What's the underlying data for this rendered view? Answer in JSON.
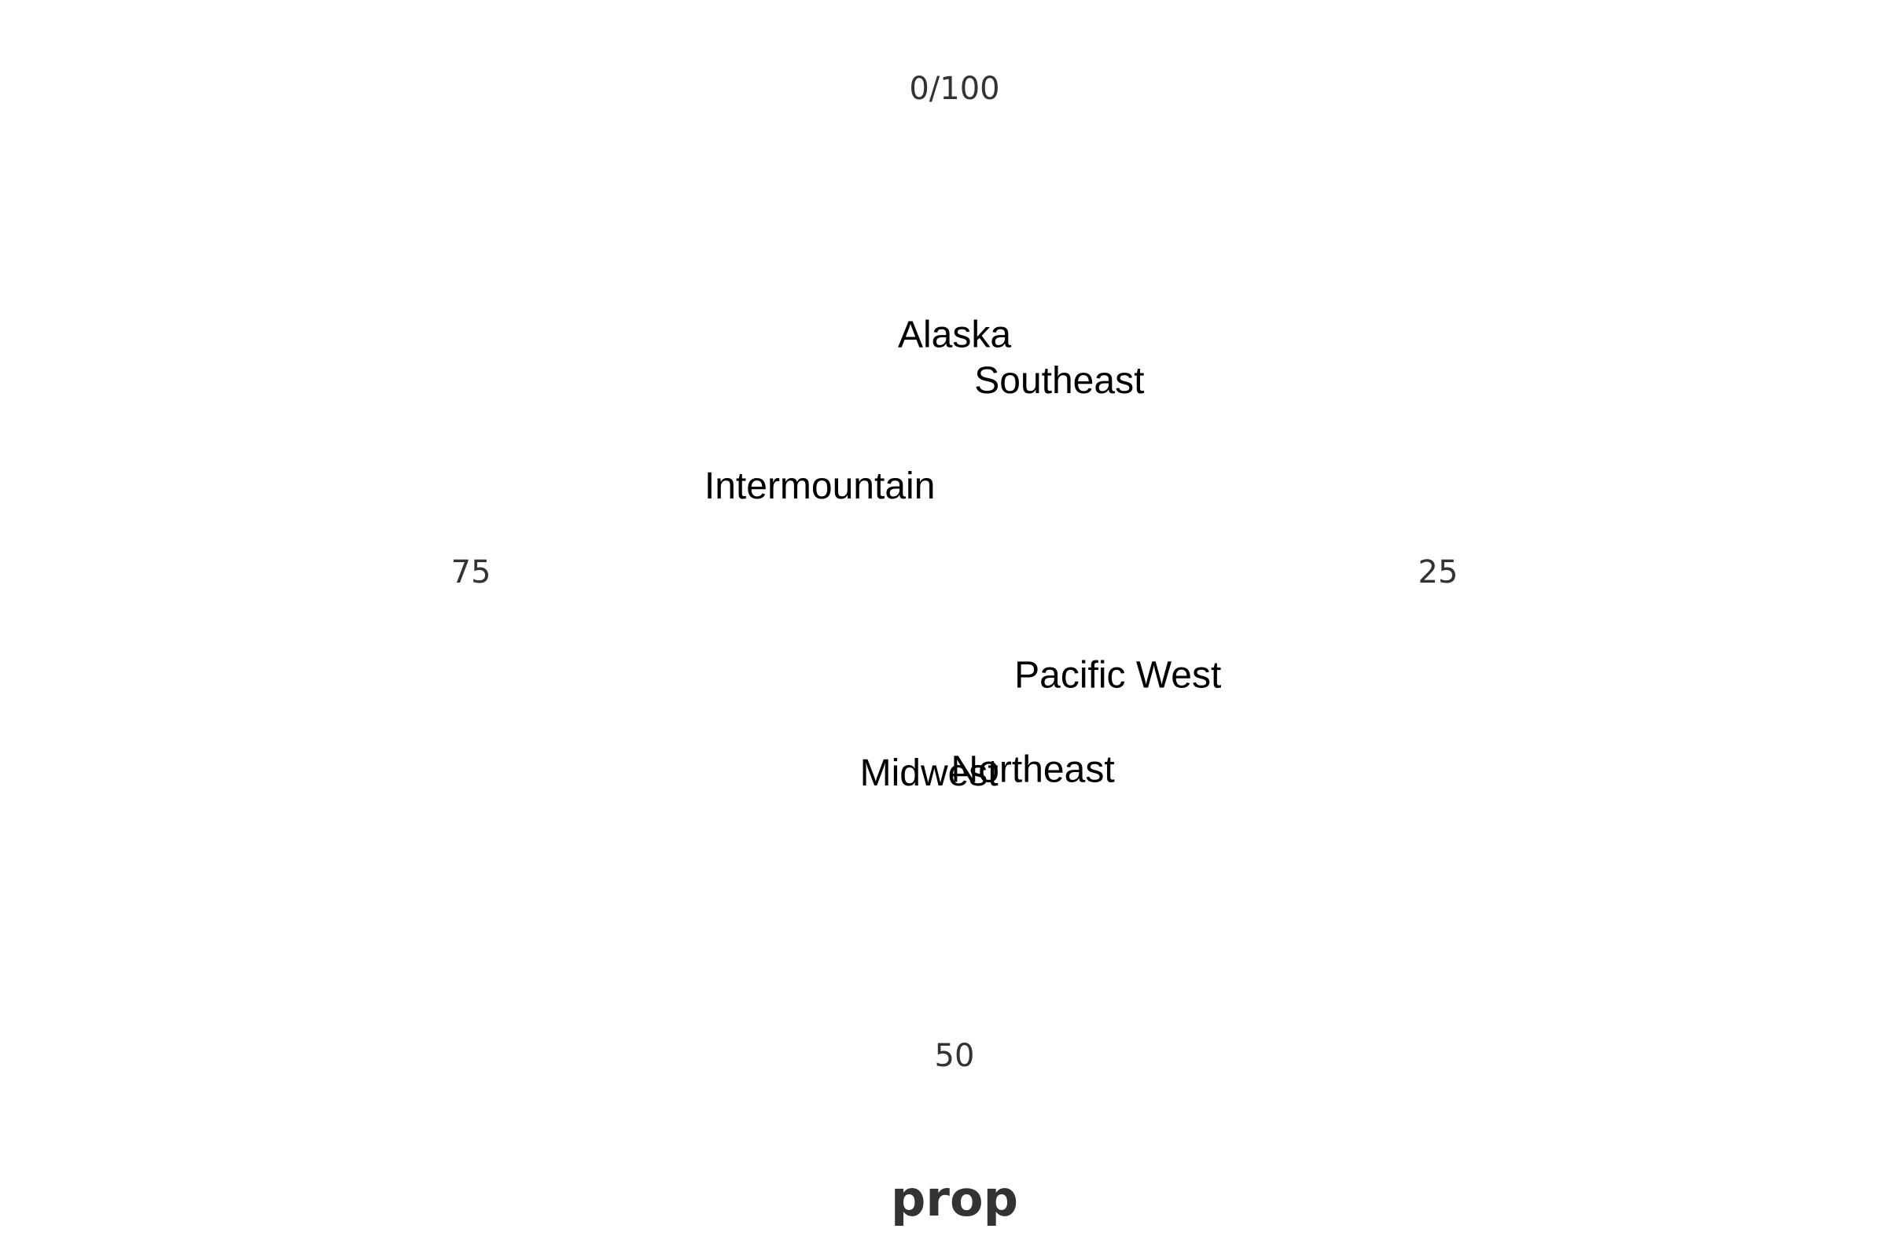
{
  "chart_data": {
    "type": "scatter",
    "coord": "polar",
    "title": "",
    "xlabel": "prop",
    "ylabel": "",
    "theta_range": [
      0,
      100
    ],
    "theta_ticks": [
      "0/100",
      "25",
      "50",
      "75"
    ],
    "grid": false,
    "labels": [
      {
        "label": "Alaska",
        "theta": 0,
        "r": 0.49
      },
      {
        "label": "Southeast",
        "theta": 8,
        "r": 0.45
      },
      {
        "label": "Intermountain",
        "theta": 84,
        "r": 0.33
      },
      {
        "label": "Pacific West",
        "theta": 34,
        "r": 0.4
      },
      {
        "label": "Midwest",
        "theta": 52,
        "r": 0.42
      },
      {
        "label": "Northeast",
        "theta": 44,
        "r": 0.44
      }
    ],
    "colors": {
      "tick_text": "#333333",
      "point_text": "#000000",
      "background": "#ffffff"
    }
  }
}
